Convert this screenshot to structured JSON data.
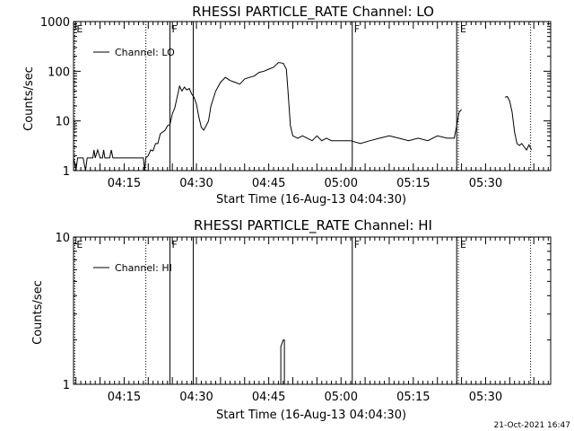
{
  "colors": {
    "background": "#ffffff",
    "foreground": "#000000"
  },
  "footer": {
    "date": "21-Oct-2021 16:47"
  },
  "chart_data": [
    {
      "type": "line",
      "title": "RHESSI PARTICLE_RATE Channel: LO",
      "xlabel": "Start Time (16-Aug-13 04:04:30)",
      "ylabel": "Counts/sec",
      "yscale": "log",
      "ylim": [
        1,
        1000
      ],
      "xlim": [
        "04:04:30",
        "05:43:30"
      ],
      "yticks": [
        "1",
        "10",
        "100",
        "1000"
      ],
      "xticks": [
        "04:15",
        "04:30",
        "04:45",
        "05:00",
        "05:15",
        "05:30"
      ],
      "legend": {
        "position": "top-left",
        "entries": [
          "Channel: LO"
        ]
      },
      "markers": [
        {
          "time": "04:04:45",
          "style": "dotted",
          "label": "E"
        },
        {
          "time": "04:19:30",
          "style": "dotted",
          "label": ""
        },
        {
          "time": "04:24:30",
          "style": "solid",
          "label": "F"
        },
        {
          "time": "04:29:20",
          "style": "solid",
          "label": ""
        },
        {
          "time": "05:02:20",
          "style": "solid",
          "label": "F"
        },
        {
          "time": "05:24:00",
          "style": "solid",
          "label": ""
        },
        {
          "time": "05:24:20",
          "style": "dotted",
          "label": "E"
        },
        {
          "time": "05:39:20",
          "style": "dotted",
          "label": ""
        }
      ],
      "series": [
        {
          "segments": [
            [
              [
                "04:04:30",
                1.8
              ],
              [
                "04:05:00",
                1.0
              ],
              [
                "04:05:20",
                1.8
              ],
              [
                "04:06:30",
                1.8
              ],
              [
                "04:07:00",
                1.0
              ],
              [
                "04:07:20",
                1.8
              ],
              [
                "04:08:30",
                1.8
              ],
              [
                "04:08:45",
                2.6
              ],
              [
                "04:09:00",
                1.8
              ],
              [
                "04:09:30",
                2.6
              ],
              [
                "04:10:00",
                1.8
              ],
              [
                "04:10:30",
                1.8
              ],
              [
                "04:10:45",
                2.6
              ],
              [
                "04:11:00",
                1.8
              ],
              [
                "04:12:00",
                1.8
              ],
              [
                "04:12:20",
                2.6
              ],
              [
                "04:12:40",
                1.8
              ],
              [
                "04:19:00",
                1.8
              ],
              [
                "04:19:15",
                1.0
              ],
              [
                "04:19:30",
                1.8
              ],
              [
                "04:20:00",
                2.0
              ],
              [
                "04:20:30",
                2.6
              ],
              [
                "04:21:00",
                2.5
              ],
              [
                "04:21:30",
                3.5
              ],
              [
                "04:22:00",
                3.5
              ],
              [
                "04:22:30",
                5.5
              ],
              [
                "04:23:30",
                6.5
              ],
              [
                "04:24:00",
                8.0
              ],
              [
                "04:24:30",
                8.5
              ],
              [
                "04:25:00",
                14
              ],
              [
                "04:25:30",
                18
              ],
              [
                "04:26:00",
                30
              ],
              [
                "04:26:30",
                50
              ],
              [
                "04:27:00",
                40
              ],
              [
                "04:27:30",
                48
              ],
              [
                "04:28:00",
                42
              ],
              [
                "04:28:30",
                45
              ],
              [
                "04:29:00",
                35
              ],
              [
                "04:29:30",
                30
              ],
              [
                "04:30:00",
                22
              ],
              [
                "04:30:30",
                12
              ],
              [
                "04:31:00",
                7.5
              ],
              [
                "04:31:30",
                6.5
              ],
              [
                "04:32:00",
                8.0
              ],
              [
                "04:32:30",
                10
              ],
              [
                "04:33:00",
                20
              ],
              [
                "04:34:00",
                40
              ],
              [
                "04:35:00",
                60
              ],
              [
                "04:36:00",
                75
              ],
              [
                "04:37:00",
                65
              ],
              [
                "04:38:00",
                60
              ],
              [
                "04:39:00",
                55
              ],
              [
                "04:40:00",
                70
              ],
              [
                "04:41:00",
                75
              ],
              [
                "04:42:00",
                80
              ],
              [
                "04:43:00",
                95
              ],
              [
                "04:44:00",
                100
              ],
              [
                "04:45:00",
                110
              ],
              [
                "04:46:00",
                120
              ],
              [
                "04:47:00",
                150
              ],
              [
                "04:48:00",
                145
              ],
              [
                "04:48:40",
                110
              ],
              [
                "04:49:00",
                40
              ],
              [
                "04:49:30",
                8.0
              ],
              [
                "04:50:00",
                5.0
              ],
              [
                "04:51:00",
                4.5
              ],
              [
                "04:52:00",
                5.0
              ],
              [
                "04:53:00",
                4.5
              ],
              [
                "04:54:00",
                4.0
              ],
              [
                "04:55:00",
                5.0
              ],
              [
                "04:56:00",
                4.0
              ],
              [
                "04:57:00",
                4.5
              ],
              [
                "04:58:00",
                4.0
              ],
              [
                "05:00:00",
                4.0
              ],
              [
                "05:02:00",
                4.0
              ],
              [
                "05:04:00",
                3.5
              ],
              [
                "05:06:00",
                4.0
              ],
              [
                "05:08:00",
                4.5
              ],
              [
                "05:10:00",
                5.0
              ],
              [
                "05:12:00",
                4.5
              ],
              [
                "05:14:00",
                4.0
              ],
              [
                "05:16:00",
                4.5
              ],
              [
                "05:18:00",
                4.0
              ],
              [
                "05:20:00",
                5.0
              ],
              [
                "05:22:00",
                4.5
              ],
              [
                "05:23:30",
                4.5
              ],
              [
                "05:24:00",
                8.0
              ],
              [
                "05:24:30",
                15
              ],
              [
                "05:25:00",
                17
              ]
            ],
            [
              [
                "05:34:00",
                30
              ],
              [
                "05:34:30",
                31
              ],
              [
                "05:35:00",
                25
              ],
              [
                "05:35:30",
                15
              ],
              [
                "05:36:00",
                6.0
              ],
              [
                "05:36:30",
                3.5
              ],
              [
                "05:37:00",
                3.2
              ],
              [
                "05:37:30",
                3.5
              ],
              [
                "05:38:00",
                3.0
              ],
              [
                "05:38:30",
                2.6
              ],
              [
                "05:39:00",
                3.3
              ],
              [
                "05:39:30",
                2.6
              ]
            ]
          ]
        }
      ]
    },
    {
      "type": "line",
      "title": "RHESSI PARTICLE_RATE Channel: HI",
      "xlabel": "Start Time (16-Aug-13 04:04:30)",
      "ylabel": "Counts/sec",
      "yscale": "log",
      "ylim": [
        1,
        10
      ],
      "xlim": [
        "04:04:30",
        "05:43:30"
      ],
      "yticks": [
        "1",
        "10"
      ],
      "xticks": [
        "04:15",
        "04:30",
        "04:45",
        "05:00",
        "05:15",
        "05:30"
      ],
      "legend": {
        "position": "top-left",
        "entries": [
          "Channel: HI"
        ]
      },
      "markers": [
        {
          "time": "04:04:45",
          "style": "dotted",
          "label": "E"
        },
        {
          "time": "04:19:30",
          "style": "dotted",
          "label": ""
        },
        {
          "time": "04:24:30",
          "style": "solid",
          "label": "F"
        },
        {
          "time": "04:29:20",
          "style": "solid",
          "label": ""
        },
        {
          "time": "05:02:20",
          "style": "solid",
          "label": "F"
        },
        {
          "time": "05:24:00",
          "style": "solid",
          "label": ""
        },
        {
          "time": "05:24:20",
          "style": "dotted",
          "label": "E"
        },
        {
          "time": "05:39:20",
          "style": "dotted",
          "label": ""
        }
      ],
      "series": [
        {
          "segments": [
            [
              [
                "04:47:30",
                1.0
              ],
              [
                "04:47:30",
                1.8
              ],
              [
                "04:48:00",
                2.0
              ],
              [
                "04:48:15",
                2.0
              ],
              [
                "04:48:15",
                1.0
              ]
            ]
          ]
        }
      ]
    }
  ]
}
